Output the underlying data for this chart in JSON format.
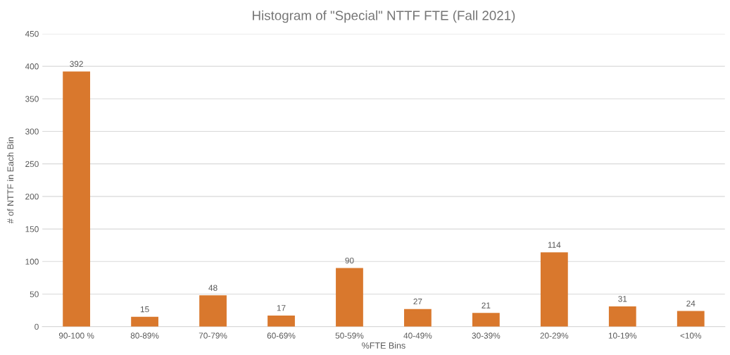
{
  "chart_data": {
    "type": "bar",
    "title": "Histogram of \"Special\" NTTF FTE (Fall 2021)",
    "xlabel": "%FTE Bins",
    "ylabel": "# of NTTF in Each Bin",
    "categories": [
      "90-100 %",
      "80-89%",
      "70-79%",
      "60-69%",
      "50-59%",
      "40-49%",
      "30-39%",
      "20-29%",
      "10-19%",
      "<10%"
    ],
    "values": [
      392,
      15,
      48,
      17,
      90,
      27,
      21,
      114,
      31,
      24
    ],
    "color": "#d9782d",
    "ylim": [
      0,
      450
    ],
    "yticks": [
      0,
      50,
      100,
      150,
      200,
      250,
      300,
      350,
      400,
      450
    ],
    "grid": "y",
    "data_labels": true
  }
}
